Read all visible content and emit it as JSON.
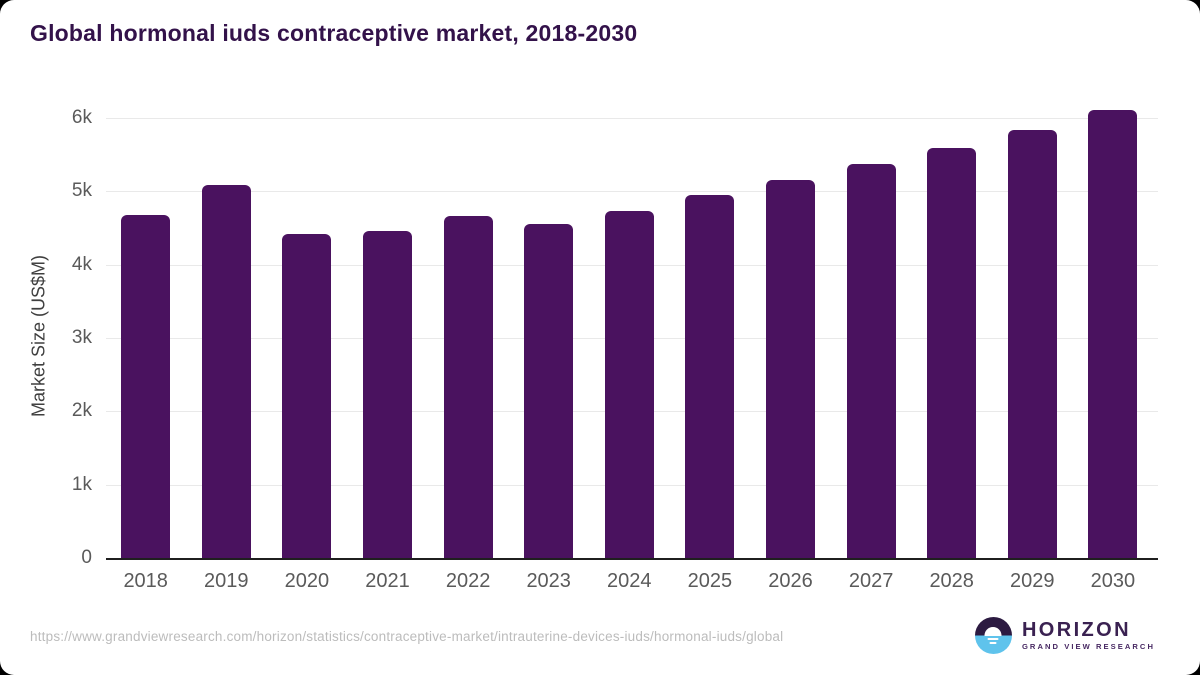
{
  "chart_data": {
    "type": "bar",
    "title": "Global hormonal iuds contraceptive market, 2018-2030",
    "categories": [
      "2018",
      "2019",
      "2020",
      "2021",
      "2022",
      "2023",
      "2024",
      "2025",
      "2026",
      "2027",
      "2028",
      "2029",
      "2030"
    ],
    "values": [
      4680,
      5090,
      4420,
      4460,
      4670,
      4560,
      4740,
      4950,
      5160,
      5370,
      5600,
      5840,
      6110
    ],
    "xlabel": "",
    "ylabel": "Market Size (US$M)",
    "ylim": [
      0,
      6330
    ],
    "yticks": [
      {
        "value": 0,
        "label": "0"
      },
      {
        "value": 1000,
        "label": "1k"
      },
      {
        "value": 2000,
        "label": "2k"
      },
      {
        "value": 3000,
        "label": "3k"
      },
      {
        "value": 4000,
        "label": "4k"
      },
      {
        "value": 5000,
        "label": "5k"
      },
      {
        "value": 6000,
        "label": "6k"
      }
    ],
    "grid": "horizontal",
    "legend": "none",
    "bar_color": "#4a125f",
    "gridline_color": "#e9e9e9",
    "axis_line_color": "#1f1f1f",
    "tick_label_color": "#5a5a5a",
    "title_color": "#33124a"
  },
  "footer": {
    "source_url": "https://www.grandviewresearch.com/horizon/statistics/contraceptive-market/intrauterine-devices-iuds/hormonal-iuds/global",
    "logo": {
      "name": "HORIZON",
      "subtitle": "GRAND VIEW RESEARCH",
      "icon": "horizon-sun-over-water-icon",
      "icon_purple": "#2c1a41",
      "icon_blue": "#5fc3ec"
    }
  }
}
